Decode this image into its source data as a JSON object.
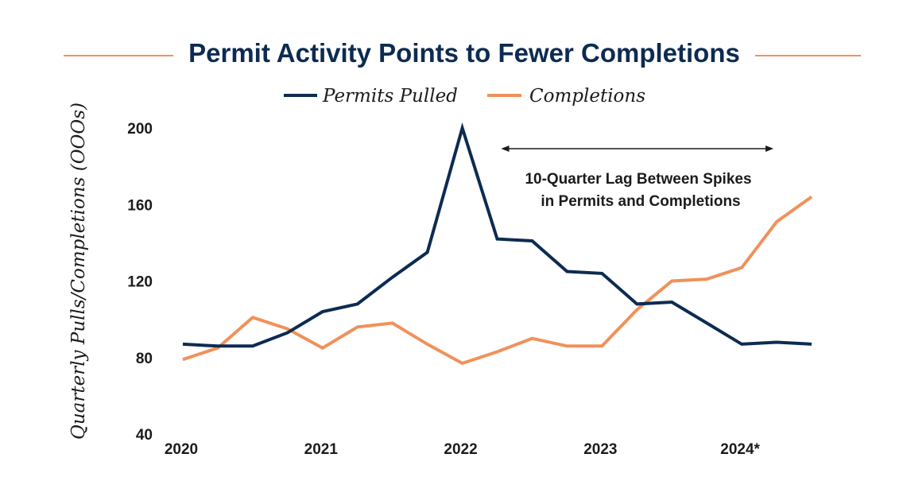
{
  "chart_data": {
    "type": "line",
    "title": "Permit Activity Points to Fewer Completions",
    "ylabel": "Quarterly Pulls/Completions (OOOs)",
    "xlabel": "",
    "ylim": [
      40,
      200
    ],
    "yticks": [
      "200",
      "160",
      "120",
      "80",
      "40"
    ],
    "x_ticks": [
      "2020",
      "2021",
      "2022",
      "2023",
      "2024*"
    ],
    "x_quarters": [
      "2020 Q1",
      "2020 Q2",
      "2020 Q3",
      "2020 Q4",
      "2021 Q1",
      "2021 Q2",
      "2021 Q3",
      "2021 Q4",
      "2022 Q1",
      "2022 Q2",
      "2022 Q3",
      "2022 Q4",
      "2023 Q1",
      "2023 Q2",
      "2023 Q3",
      "2023 Q4",
      "2024 Q1",
      "2024 Q2",
      "2024 Q3"
    ],
    "legend_position": "top-center",
    "grid": false,
    "series": [
      {
        "name": "Permits Pulled",
        "color": "#0d2b52",
        "values": [
          87,
          86,
          86,
          93,
          104,
          108,
          122,
          135,
          200,
          142,
          141,
          125,
          124,
          108,
          109,
          98,
          87,
          88,
          87
        ]
      },
      {
        "name": "Completions",
        "color": "#f0915a",
        "values": [
          79,
          85,
          101,
          95,
          85,
          96,
          98,
          87,
          77,
          83,
          90,
          86,
          86,
          105,
          120,
          121,
          127,
          151,
          164
        ]
      }
    ],
    "annotation": {
      "text_lines": [
        "10-Quarter Lag Between Spikes",
        "in Permits and Completions"
      ],
      "arrow_from_quarter": "2022 Q2",
      "arrow_to_quarter": "2024 Q2"
    }
  }
}
